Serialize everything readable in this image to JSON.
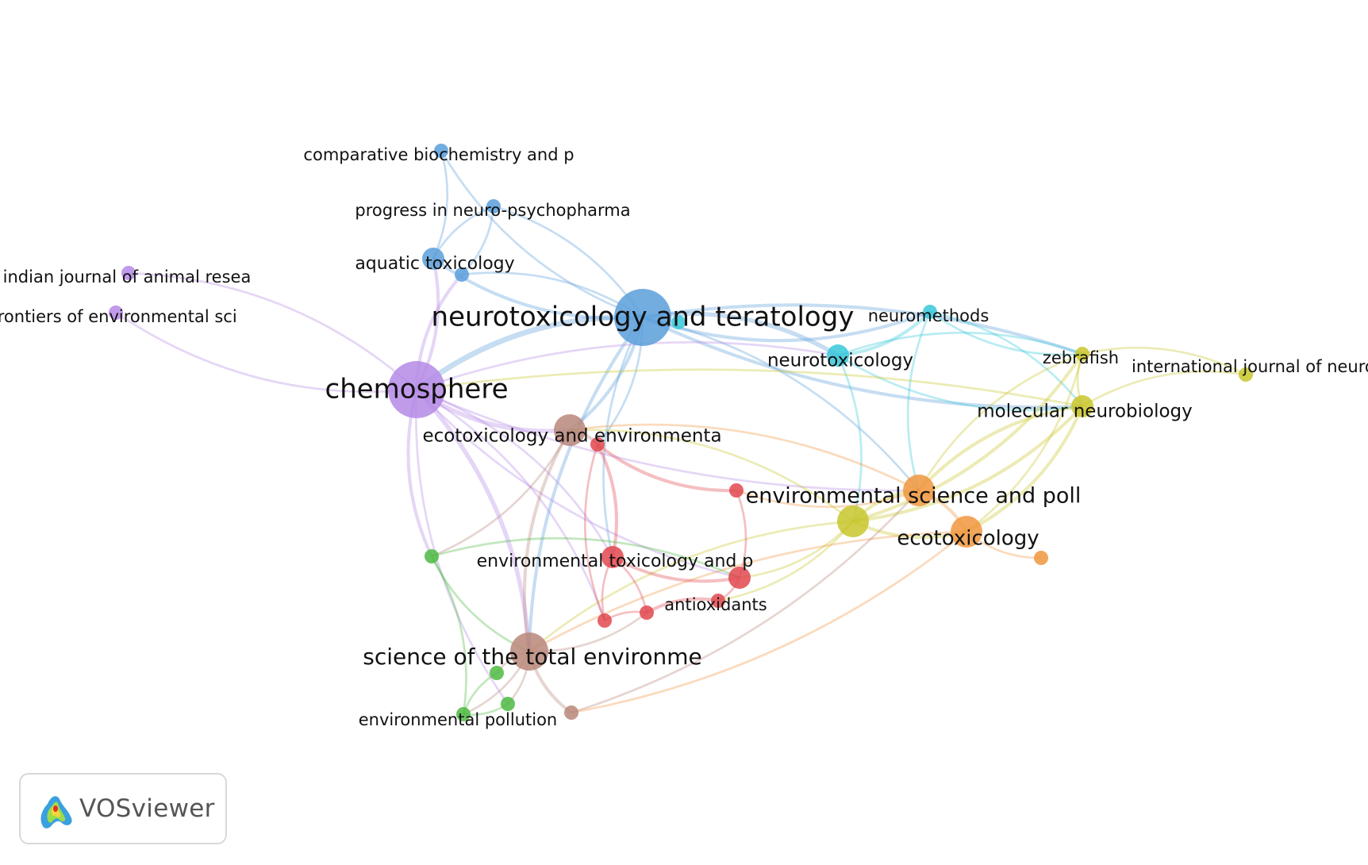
{
  "app": {
    "brand": "VOSviewer",
    "logo_icon": "vosviewer-logo-icon"
  },
  "clusters": {
    "red": "#e0484f",
    "green": "#4dba43",
    "blue": "#5b9fdb",
    "yellow": "#c8c52c",
    "purple": "#b58ae6",
    "cyan": "#37c8d9",
    "orange": "#f0963e",
    "brown": "#b8877a"
  },
  "network": {
    "nodes": [
      {
        "id": "neurotoxicology_teratology",
        "label": "neurotoxicology and teratology",
        "cluster": "blue",
        "weight": 5
      },
      {
        "id": "chemosphere",
        "label": "chemosphere",
        "cluster": "purple",
        "weight": 5
      },
      {
        "id": "comparative_biochemistry",
        "label": "comparative biochemistry and p",
        "cluster": "blue",
        "weight": 1
      },
      {
        "id": "progress_neuro",
        "label": "progress in neuro-psychopharma",
        "cluster": "blue",
        "weight": 1
      },
      {
        "id": "aquatic_toxicology",
        "label": "aquatic toxicology",
        "cluster": "blue",
        "weight": 2
      },
      {
        "id": "blue_unlabeled_1",
        "label": "",
        "cluster": "blue",
        "weight": 1
      },
      {
        "id": "indian_journal",
        "label": "indian journal of animal resea",
        "cluster": "purple",
        "weight": 1
      },
      {
        "id": "frontiers_env",
        "label": "frontiers of environmental sci",
        "cluster": "purple",
        "weight": 1
      },
      {
        "id": "neuromethods",
        "label": "neuromethods",
        "cluster": "cyan",
        "weight": 1
      },
      {
        "id": "neurotoxicology",
        "label": "neurotoxicology",
        "cluster": "cyan",
        "weight": 2
      },
      {
        "id": "cyan_unlabeled_1",
        "label": "",
        "cluster": "cyan",
        "weight": 1
      },
      {
        "id": "zebrafish",
        "label": "zebrafish",
        "cluster": "yellow",
        "weight": 1
      },
      {
        "id": "intl_journal_neuro",
        "label": "international journal of neuro",
        "cluster": "yellow",
        "weight": 1
      },
      {
        "id": "molecular_neurobiology",
        "label": "molecular neurobiology",
        "cluster": "yellow",
        "weight": 2
      },
      {
        "id": "yellow_unlabeled_1",
        "label": "",
        "cluster": "yellow",
        "weight": 3
      },
      {
        "id": "ecotox_env_safety",
        "label": "ecotoxicology and environmenta",
        "cluster": "brown",
        "weight": 3
      },
      {
        "id": "science_total_env",
        "label": "science of the total environme",
        "cluster": "brown",
        "weight": 4
      },
      {
        "id": "brown_unlabeled_1",
        "label": "",
        "cluster": "brown",
        "weight": 1
      },
      {
        "id": "env_science_poll",
        "label": "environmental science and poll",
        "cluster": "orange",
        "weight": 3
      },
      {
        "id": "ecotoxicology",
        "label": "ecotoxicology",
        "cluster": "orange",
        "weight": 3
      },
      {
        "id": "orange_unlabeled_1",
        "label": "",
        "cluster": "orange",
        "weight": 1
      },
      {
        "id": "env_tox_pharm",
        "label": "environmental toxicology and p",
        "cluster": "red",
        "weight": 2
      },
      {
        "id": "antioxidants",
        "label": "antioxidants",
        "cluster": "red",
        "weight": 1
      },
      {
        "id": "red_unlabeled_1",
        "label": "",
        "cluster": "red",
        "weight": 1
      },
      {
        "id": "red_unlabeled_2",
        "label": "",
        "cluster": "red",
        "weight": 1
      },
      {
        "id": "red_unlabeled_3",
        "label": "",
        "cluster": "red",
        "weight": 2
      },
      {
        "id": "red_unlabeled_4",
        "label": "",
        "cluster": "red",
        "weight": 1
      },
      {
        "id": "red_unlabeled_5",
        "label": "",
        "cluster": "red",
        "weight": 1
      },
      {
        "id": "env_pollution",
        "label": "environmental pollution",
        "cluster": "green",
        "weight": 1
      },
      {
        "id": "green_unlabeled_1",
        "label": "",
        "cluster": "green",
        "weight": 1
      },
      {
        "id": "green_unlabeled_2",
        "label": "",
        "cluster": "green",
        "weight": 1
      },
      {
        "id": "green_unlabeled_3",
        "label": "",
        "cluster": "green",
        "weight": 1
      }
    ],
    "links": [
      [
        "neurotoxicology_teratology",
        "chemosphere",
        4
      ],
      [
        "neurotoxicology_teratology",
        "comparative_biochemistry",
        1
      ],
      [
        "neurotoxicology_teratology",
        "progress_neuro",
        1
      ],
      [
        "neurotoxicology_teratology",
        "aquatic_toxicology",
        2
      ],
      [
        "neurotoxicology_teratology",
        "blue_unlabeled_1",
        1
      ],
      [
        "neurotoxicology_teratology",
        "neurotoxicology",
        3
      ],
      [
        "neurotoxicology_teratology",
        "neuromethods",
        2
      ],
      [
        "neurotoxicology_teratology",
        "zebrafish",
        2
      ],
      [
        "neurotoxicology_teratology",
        "molecular_neurobiology",
        2
      ],
      [
        "neurotoxicology_teratology",
        "ecotox_env_safety",
        2
      ],
      [
        "neurotoxicology_teratology",
        "science_total_env",
        2
      ],
      [
        "neurotoxicology_teratology",
        "env_science_poll",
        1
      ],
      [
        "neurotoxicology_teratology",
        "env_tox_pharm",
        1
      ],
      [
        "neurotoxicology_teratology",
        "red_unlabeled_1",
        1
      ],
      [
        "chemosphere",
        "aquatic_toxicology",
        2
      ],
      [
        "chemosphere",
        "blue_unlabeled_1",
        2
      ],
      [
        "chemosphere",
        "indian_journal",
        1
      ],
      [
        "chemosphere",
        "frontiers_env",
        1
      ],
      [
        "chemosphere",
        "ecotox_env_safety",
        3
      ],
      [
        "chemosphere",
        "science_total_env",
        3
      ],
      [
        "chemosphere",
        "green_unlabeled_1",
        2
      ],
      [
        "chemosphere",
        "env_tox_pharm",
        1
      ],
      [
        "chemosphere",
        "red_unlabeled_3",
        1
      ],
      [
        "chemosphere",
        "red_unlabeled_2",
        1
      ],
      [
        "chemosphere",
        "env_science_poll",
        1
      ],
      [
        "chemosphere",
        "neurotoxicology",
        1
      ],
      [
        "chemosphere",
        "green_unlabeled_2",
        1
      ],
      [
        "comparative_biochemistry",
        "aquatic_toxicology",
        1
      ],
      [
        "progress_neuro",
        "aquatic_toxicology",
        1
      ],
      [
        "progress_neuro",
        "blue_unlabeled_1",
        1
      ],
      [
        "neurotoxicology",
        "neuromethods",
        2
      ],
      [
        "neurotoxicology",
        "zebrafish",
        1
      ],
      [
        "neurotoxicology",
        "molecular_neurobiology",
        1
      ],
      [
        "neurotoxicology",
        "yellow_unlabeled_1",
        1
      ],
      [
        "neuromethods",
        "zebrafish",
        1
      ],
      [
        "neuromethods",
        "molecular_neurobiology",
        1
      ],
      [
        "neuromethods",
        "env_science_poll",
        1
      ],
      [
        "zebrafish",
        "intl_journal_neuro",
        1
      ],
      [
        "zebrafish",
        "molecular_neurobiology",
        1
      ],
      [
        "zebrafish",
        "yellow_unlabeled_1",
        2
      ],
      [
        "zebrafish",
        "env_science_poll",
        1
      ],
      [
        "zebrafish",
        "ecotoxicology",
        1
      ],
      [
        "intl_journal_neuro",
        "molecular_neurobiology",
        1
      ],
      [
        "molecular_neurobiology",
        "yellow_unlabeled_1",
        2
      ],
      [
        "molecular_neurobiology",
        "env_science_poll",
        2
      ],
      [
        "molecular_neurobiology",
        "ecotoxicology",
        2
      ],
      [
        "molecular_neurobiology",
        "chemosphere",
        1
      ],
      [
        "yellow_unlabeled_1",
        "env_science_poll",
        2
      ],
      [
        "yellow_unlabeled_1",
        "ecotoxicology",
        2
      ],
      [
        "yellow_unlabeled_1",
        "red_unlabeled_3",
        1
      ],
      [
        "yellow_unlabeled_1",
        "science_total_env",
        1
      ],
      [
        "yellow_unlabeled_1",
        "antioxidants",
        1
      ],
      [
        "yellow_unlabeled_1",
        "ecotox_env_safety",
        1
      ],
      [
        "env_science_poll",
        "ecotoxicology",
        2
      ],
      [
        "env_science_poll",
        "ecotox_env_safety",
        1
      ],
      [
        "env_science_poll",
        "red_unlabeled_4",
        1
      ],
      [
        "ecotoxicology",
        "orange_unlabeled_1",
        1
      ],
      [
        "ecotoxicology",
        "brown_unlabeled_1",
        1
      ],
      [
        "ecotoxicology",
        "science_total_env",
        1
      ],
      [
        "ecotox_env_safety",
        "red_unlabeled_1",
        2
      ],
      [
        "ecotox_env_safety",
        "science_total_env",
        2
      ],
      [
        "ecotox_env_safety",
        "green_unlabeled_1",
        1
      ],
      [
        "red_unlabeled_1",
        "red_unlabeled_4",
        2
      ],
      [
        "red_unlabeled_1",
        "env_tox_pharm",
        2
      ],
      [
        "red_unlabeled_1",
        "red_unlabeled_2",
        1
      ],
      [
        "red_unlabeled_4",
        "red_unlabeled_3",
        1
      ],
      [
        "env_tox_pharm",
        "red_unlabeled_3",
        2
      ],
      [
        "env_tox_pharm",
        "red_unlabeled_5",
        1
      ],
      [
        "env_tox_pharm",
        "red_unlabeled_2",
        1
      ],
      [
        "red_unlabeled_5",
        "antioxidants",
        2
      ],
      [
        "red_unlabeled_5",
        "red_unlabeled_2",
        1
      ],
      [
        "red_unlabeled_3",
        "antioxidants",
        1
      ],
      [
        "science_total_env",
        "green_unlabeled_3",
        1
      ],
      [
        "science_total_env",
        "env_pollution",
        1
      ],
      [
        "science_total_env",
        "brown_unlabeled_1",
        2
      ],
      [
        "science_total_env",
        "green_unlabeled_2",
        1
      ],
      [
        "science_total_env",
        "red_unlabeled_5",
        1
      ],
      [
        "green_unlabeled_1",
        "env_pollution",
        1
      ],
      [
        "green_unlabeled_1",
        "science_total_env",
        1
      ],
      [
        "green_unlabeled_1",
        "red_unlabeled_3",
        1
      ],
      [
        "green_unlabeled_3",
        "env_pollution",
        1
      ],
      [
        "green_unlabeled_2",
        "env_pollution",
        1
      ],
      [
        "brown_unlabeled_1",
        "env_science_poll",
        1
      ]
    ]
  }
}
